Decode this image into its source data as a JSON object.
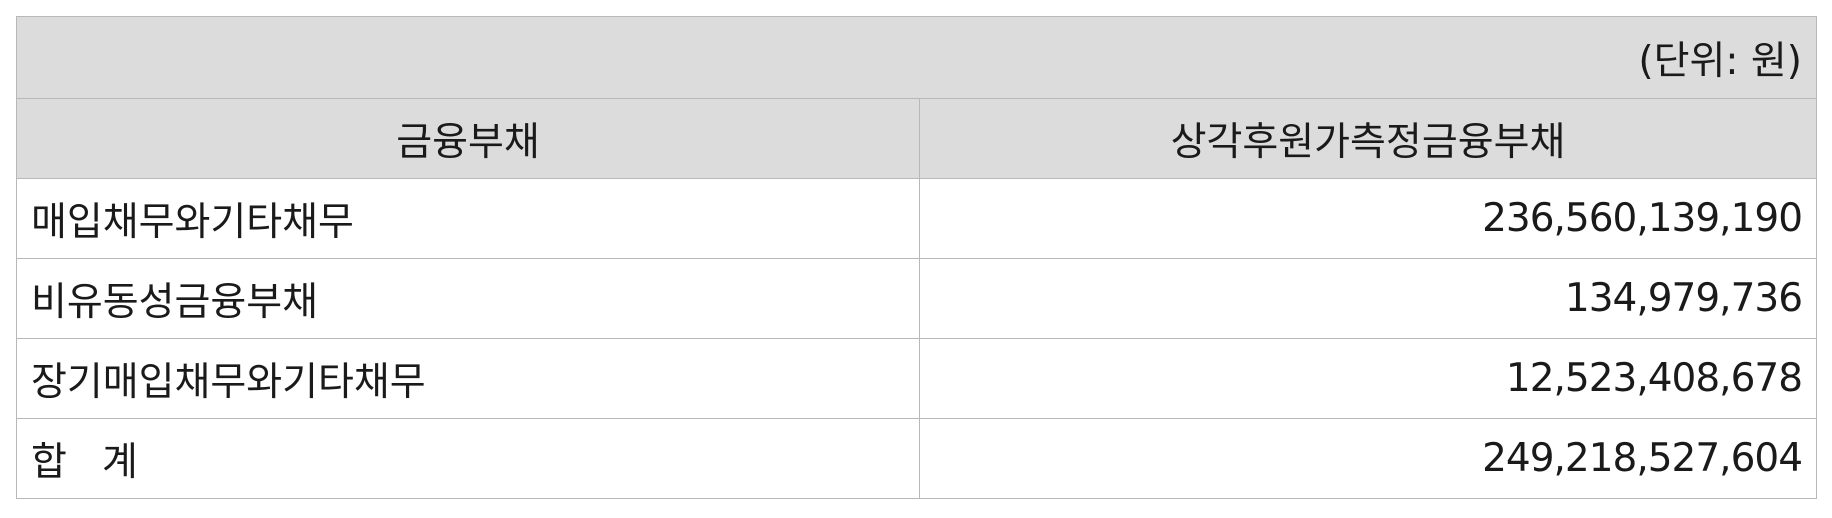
{
  "unit_label": "(단위: 원)",
  "columns": {
    "name": "금융부채",
    "value": "상각후원가측정금융부채"
  },
  "rows": [
    {
      "name": "매입채무와기타채무",
      "value": "236,560,139,190"
    },
    {
      "name": "비유동성금융부채",
      "value": "134,979,736"
    },
    {
      "name": "장기매입채무와기타채무",
      "value": "12,523,408,678"
    }
  ],
  "total": {
    "name": "합계",
    "value": "249,218,527,604"
  }
}
